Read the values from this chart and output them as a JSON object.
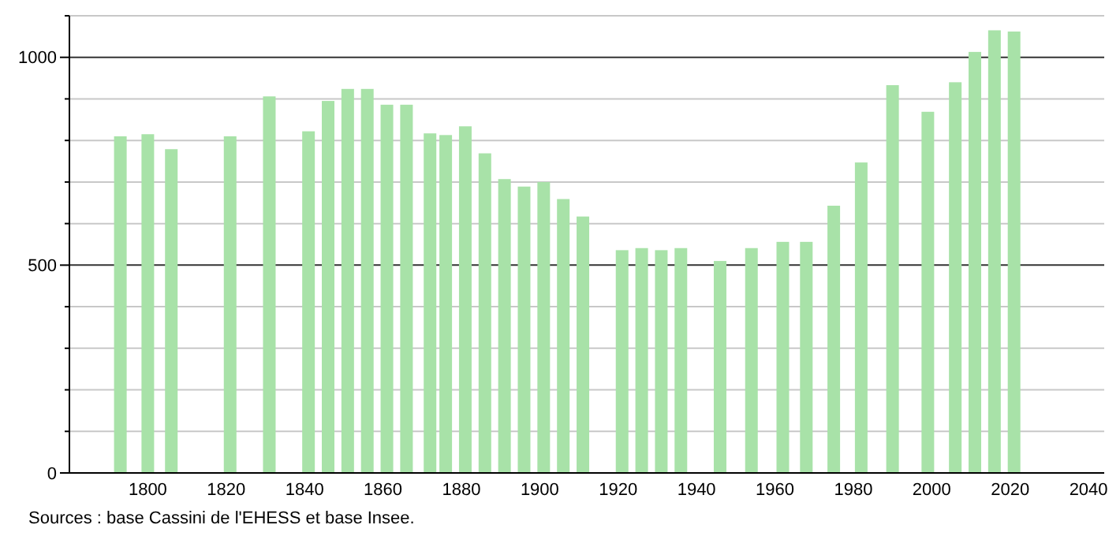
{
  "chart_data": {
    "type": "bar",
    "x": [
      1793,
      1800,
      1806,
      1821,
      1831,
      1841,
      1846,
      1851,
      1856,
      1861,
      1866,
      1872,
      1876,
      1881,
      1886,
      1891,
      1896,
      1901,
      1906,
      1911,
      1921,
      1926,
      1931,
      1936,
      1946,
      1954,
      1962,
      1968,
      1975,
      1982,
      1990,
      1999,
      2006,
      2011,
      2016,
      2021
    ],
    "values": [
      810,
      815,
      779,
      810,
      906,
      822,
      895,
      924,
      924,
      886,
      886,
      817,
      813,
      834,
      769,
      707,
      689,
      700,
      659,
      617,
      536,
      541,
      536,
      541,
      510,
      541,
      556,
      556,
      643,
      747,
      933,
      869,
      940,
      1013,
      1065,
      1062
    ],
    "color": "#a8e2a8",
    "xlim": [
      1780,
      2044
    ],
    "xticks": [
      1800,
      1820,
      1840,
      1860,
      1880,
      1900,
      1920,
      1940,
      1960,
      1980,
      2000,
      2020,
      2040
    ],
    "ylim": [
      0,
      1100
    ],
    "yticks": [
      0,
      {
        "value": 100,
        "label": null
      },
      {
        "value": 200,
        "label": null
      },
      {
        "value": 300,
        "label": null
      },
      {
        "value": 400,
        "label": null
      },
      500,
      {
        "value": 600,
        "label": null
      },
      {
        "value": 700,
        "label": null
      },
      {
        "value": 800,
        "label": null
      },
      {
        "value": 900,
        "label": null
      },
      1000,
      {
        "value": 1100,
        "label": null
      }
    ],
    "grid": "y",
    "annotations": [
      "Sources : base Cassini de l'EHESS et base Insee."
    ]
  }
}
